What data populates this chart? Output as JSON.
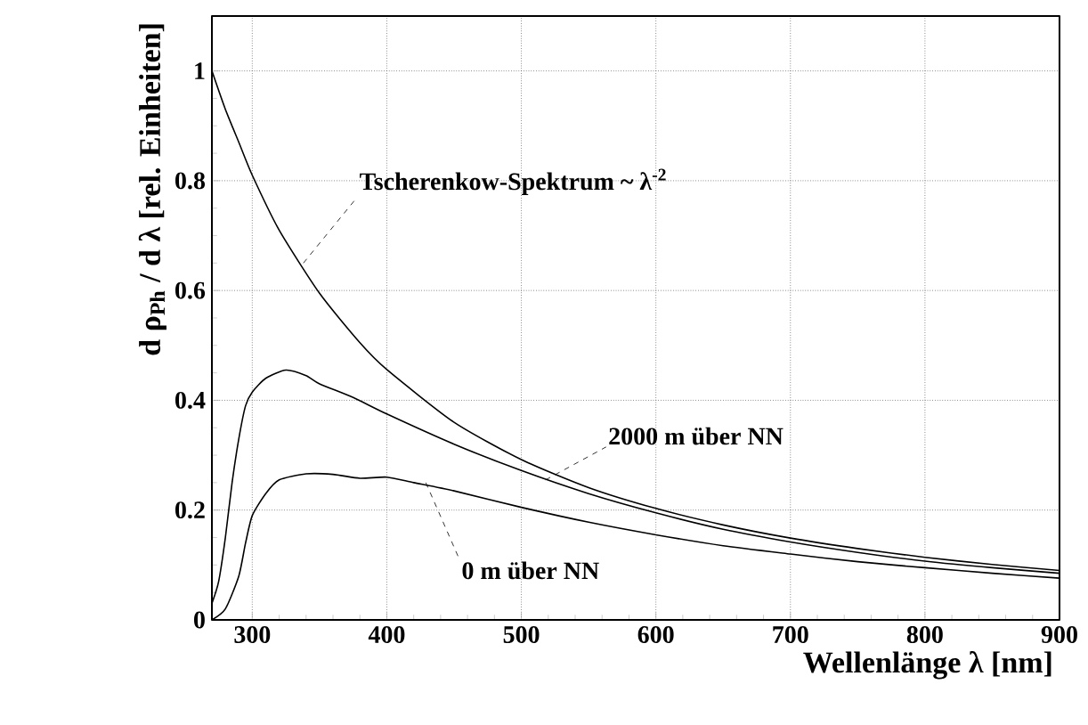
{
  "chart_data": {
    "type": "line",
    "xlabel": "Wellenlänge λ  [nm]",
    "ylabel": "d ρ$_{Ph}$ / d λ  [rel. Einheiten]",
    "xlim": [
      270,
      900
    ],
    "ylim": [
      0,
      1.1
    ],
    "xticks": [
      300,
      400,
      500,
      600,
      700,
      800,
      900
    ],
    "yticks": [
      0,
      0.2,
      0.4,
      0.6,
      0.8,
      1
    ],
    "grid": true,
    "marker": "none",
    "line_style": "solid",
    "series": [
      {
        "color": "#000000",
        "x": [
          270,
          280,
          290,
          300,
          320,
          350,
          380,
          400,
          450,
          500,
          550,
          600,
          650,
          700,
          750,
          800,
          850,
          900
        ],
        "values": [
          1,
          0.93,
          0.87,
          0.81,
          0.71,
          0.595,
          0.505,
          0.456,
          0.36,
          0.292,
          0.241,
          0.203,
          0.173,
          0.149,
          0.13,
          0.114,
          0.101,
          0.09
        ]
      },
      {
        "color": "#000000",
        "x": [
          270,
          275,
          280,
          285,
          290,
          295,
          300,
          310,
          325,
          340,
          350,
          375,
          400,
          450,
          500,
          550,
          600,
          650,
          700,
          750,
          800,
          850,
          900
        ],
        "values": [
          0.03,
          0.07,
          0.15,
          0.25,
          0.33,
          0.39,
          0.415,
          0.44,
          0.455,
          0.445,
          0.43,
          0.405,
          0.375,
          0.32,
          0.272,
          0.23,
          0.195,
          0.165,
          0.142,
          0.123,
          0.107,
          0.095,
          0.085
        ]
      },
      {
        "color": "#000000",
        "x": [
          270,
          280,
          290,
          295,
          300,
          310,
          320,
          340,
          360,
          380,
          400,
          420,
          450,
          500,
          550,
          600,
          650,
          700,
          750,
          800,
          850,
          900
        ],
        "values": [
          0.0,
          0.02,
          0.08,
          0.14,
          0.19,
          0.23,
          0.255,
          0.266,
          0.265,
          0.258,
          0.26,
          0.25,
          0.235,
          0.205,
          0.178,
          0.155,
          0.135,
          0.12,
          0.106,
          0.095,
          0.085,
          0.076
        ]
      }
    ],
    "annotations": [
      {
        "text": "Tscherenkow-Spektrum ~ λ$^{-2}$",
        "x": 338,
        "y": 0.65
      },
      {
        "text": "2000 m über NN",
        "x": 518,
        "y": 0.255
      },
      {
        "text": "0 m über NN",
        "x": 429,
        "y": 0.25
      }
    ]
  }
}
